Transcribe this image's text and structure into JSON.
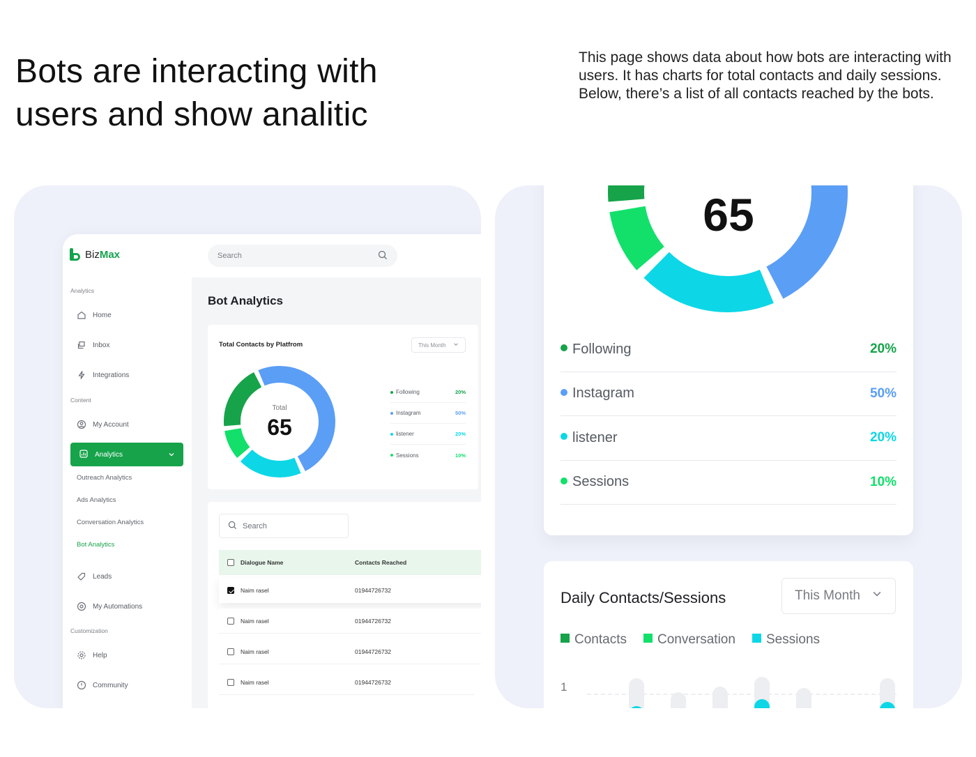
{
  "hero": {
    "headline": "Bots are interacting with users and show analitic",
    "description": "This page shows data about how bots are interacting with users. It has charts for total contacts and daily sessions. Below, there’s a list of all contacts reached by the bots."
  },
  "app": {
    "brand": {
      "name_part1": "Biz",
      "name_part2": "Max"
    },
    "search_placeholder": "Search",
    "page_title": "Bot Analytics",
    "sidebar": {
      "section_analytics": "Analytics",
      "section_content": "Content",
      "section_customization": "Customization",
      "items": {
        "home": "Home",
        "inbox": "Inbox",
        "integrations": "Integrations",
        "my_account": "My Account",
        "analytics": "Analytics",
        "leads": "Leads",
        "my_automations": "My Automations",
        "help": "Help",
        "community": "Community"
      },
      "sub_items": {
        "outreach": "Outreach Analytics",
        "ads": "Ads Analytics",
        "conversation": "Conversation Analytics",
        "bot": "Bot Analytics"
      }
    },
    "contacts_card": {
      "title": "Total Contacts by Platfrom",
      "period": "This Month",
      "total_label": "Total",
      "total_value": "65"
    },
    "table": {
      "search_placeholder": "Search",
      "col_name": "Dialogue Name",
      "col_contacts": "Contacts Reached",
      "rows": [
        {
          "name": "Naim rasel",
          "contacts": "01944726732",
          "checked": true
        },
        {
          "name": "Naim rasel",
          "contacts": "01944726732",
          "checked": false
        },
        {
          "name": "Naim rasel",
          "contacts": "01944726732",
          "checked": false
        },
        {
          "name": "Naim rasel",
          "contacts": "01944726732",
          "checked": false
        }
      ]
    }
  },
  "chart_data": [
    {
      "type": "pie",
      "variant": "donut",
      "center_value": "65",
      "center_label": "Total",
      "categories": [
        "Following",
        "Instagram",
        "listener",
        "Sessions"
      ],
      "values": [
        20,
        50,
        20,
        10
      ],
      "value_labels": [
        "20%",
        "50%",
        "20%",
        "10%"
      ],
      "colors": [
        "#16a34a",
        "#5b9ef5",
        "#0dd7e6",
        "#12e06a"
      ]
    },
    {
      "type": "bar",
      "title": "Daily Contacts/Sessions",
      "period": "This Month",
      "series": [
        {
          "name": "Contacts",
          "color": "#16a34a"
        },
        {
          "name": "Conversation",
          "color": "#12e06a"
        },
        {
          "name": "Sessions",
          "color": "#0dd7e6"
        }
      ],
      "y_tick_visible": "1"
    }
  ],
  "zoom_legend": [
    {
      "label": "Following",
      "pct": "20%",
      "color": "#16a34a"
    },
    {
      "label": "Instagram",
      "pct": "50%",
      "color": "#5b9ef5"
    },
    {
      "label": "listener",
      "pct": "20%",
      "color": "#0dd7e6"
    },
    {
      "label": "Sessions",
      "pct": "10%",
      "color": "#12e06a"
    }
  ]
}
